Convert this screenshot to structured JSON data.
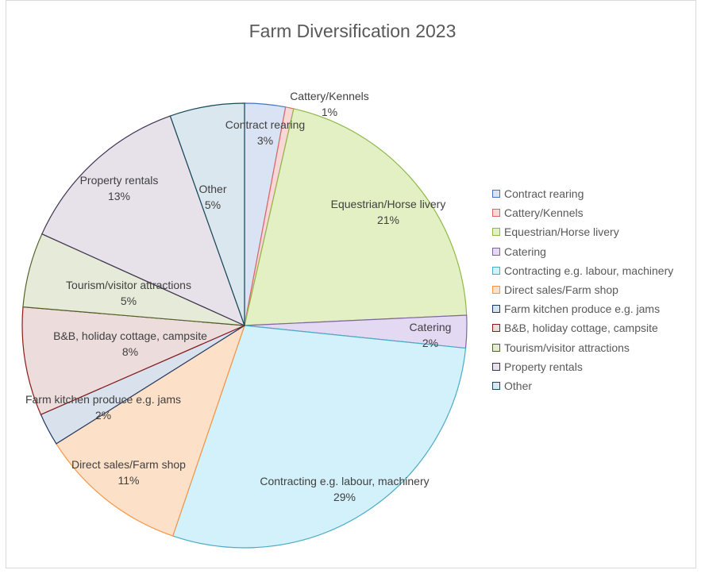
{
  "chart_data": {
    "type": "pie",
    "title": "Farm Diversification 2023",
    "slices": [
      {
        "name": "Contract rearing",
        "value": 3,
        "label": "3%",
        "fill": "#dae3f3",
        "stroke": "#4472c4"
      },
      {
        "name": "Cattery/Kennels",
        "value": 0.6,
        "label": "1%",
        "fill": "#f8d7d7",
        "stroke": "#e06666"
      },
      {
        "name": "Equestrian/Horse livery",
        "value": 21,
        "label": "21%",
        "fill": "#e2f0c4",
        "stroke": "#8fb84a"
      },
      {
        "name": "Catering",
        "value": 2.4,
        "label": "2%",
        "fill": "#e4d9f2",
        "stroke": "#8064a2"
      },
      {
        "name": "Contracting e.g. labour, machinery",
        "value": 29,
        "label": "29%",
        "fill": "#d3f1fb",
        "stroke": "#4bacc6"
      },
      {
        "name": "Direct sales/Farm shop",
        "value": 11,
        "label": "11%",
        "fill": "#fde0c8",
        "stroke": "#f79646"
      },
      {
        "name": "Farm kitchen produce e.g. jams",
        "value": 2.4,
        "label": "2%",
        "fill": "#d9e1ec",
        "stroke": "#1f3864"
      },
      {
        "name": "B&B, holiday cottage, campsite",
        "value": 8,
        "label": "8%",
        "fill": "#ecdcdc",
        "stroke": "#8b1a1a"
      },
      {
        "name": "Tourism/visitor attractions",
        "value": 5.5,
        "label": "5%",
        "fill": "#e6ebd9",
        "stroke": "#4f6228"
      },
      {
        "name": "Property rentals",
        "value": 13,
        "label": "13%",
        "fill": "#e7e1ea",
        "stroke": "#3f3151"
      },
      {
        "name": "Other",
        "value": 5.5,
        "label": "5%",
        "fill": "#dbe7ee",
        "stroke": "#17495a"
      }
    ],
    "legend_position": "right"
  }
}
